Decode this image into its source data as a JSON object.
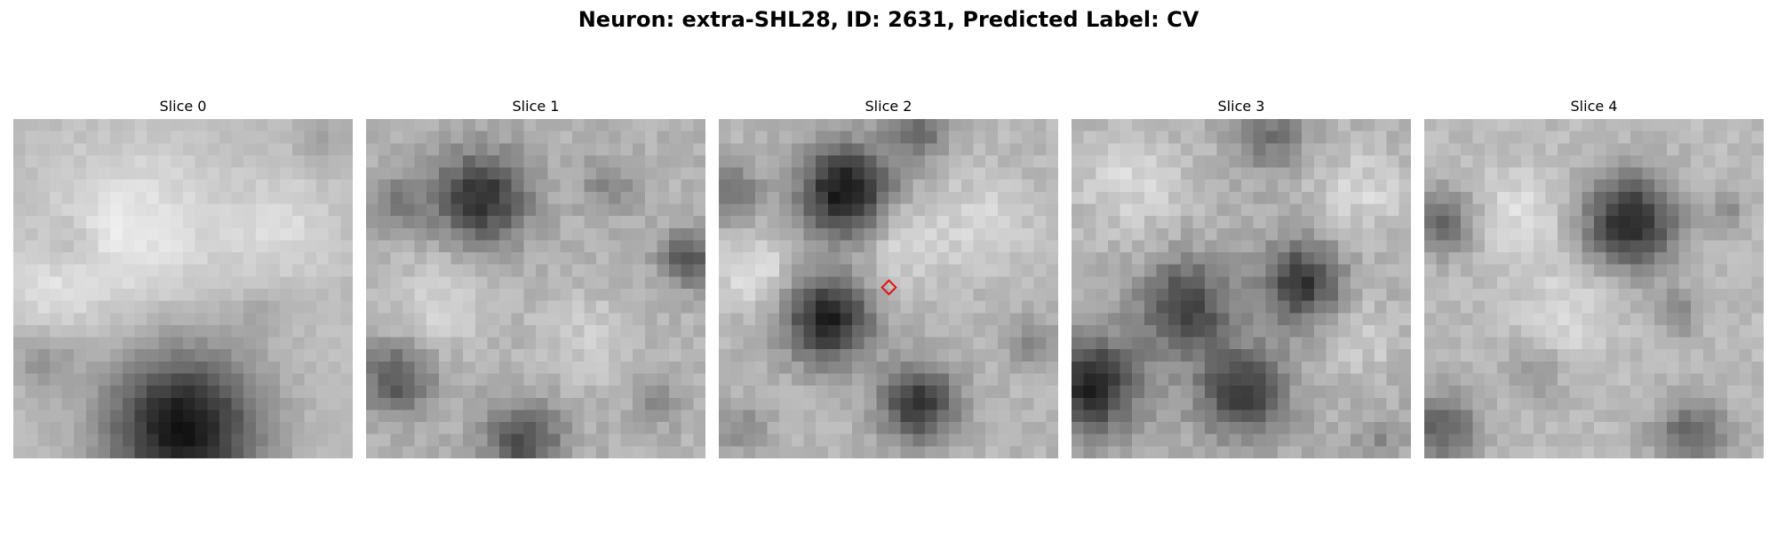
{
  "figure": {
    "title": "Neuron: extra-SHL28, ID: 2631, Predicted Label: CV"
  },
  "panels": [
    {
      "title": "Slice 0",
      "grid": 28,
      "base": 188,
      "blobs": [
        {
          "cx": 14.0,
          "cy": 25.5,
          "r": 6.2,
          "depth": 170
        },
        {
          "cx": 2.5,
          "cy": 20.0,
          "r": 2.5,
          "depth": 40
        },
        {
          "cx": 4.5,
          "cy": 10.5,
          "r": 2.2,
          "depth": 25
        },
        {
          "cx": 25.5,
          "cy": 2.0,
          "r": 2.2,
          "depth": 25
        },
        {
          "cx": 20.5,
          "cy": 16.0,
          "r": 1.8,
          "depth": 20
        }
      ],
      "brights": [
        {
          "cx": 10.0,
          "cy": 9.0,
          "r": 6.5,
          "amp": 45
        },
        {
          "cx": 22.0,
          "cy": 9.0,
          "r": 4.5,
          "amp": 30
        },
        {
          "cx": 3.0,
          "cy": 14.0,
          "r": 3.5,
          "amp": 30
        }
      ],
      "noise": 16,
      "seed": 11
    },
    {
      "title": "Slice 1",
      "grid": 28,
      "base": 178,
      "blobs": [
        {
          "cx": 9.5,
          "cy": 6.5,
          "r": 3.8,
          "depth": 130
        },
        {
          "cx": 2.5,
          "cy": 7.0,
          "r": 2.6,
          "depth": 50
        },
        {
          "cx": 26.5,
          "cy": 11.5,
          "r": 2.2,
          "depth": 95
        },
        {
          "cx": 2.5,
          "cy": 21.5,
          "r": 3.0,
          "depth": 90
        },
        {
          "cx": 13.0,
          "cy": 26.5,
          "r": 3.2,
          "depth": 100
        },
        {
          "cx": 20.0,
          "cy": 5.5,
          "r": 2.4,
          "depth": 40
        },
        {
          "cx": 24.0,
          "cy": 23.5,
          "r": 2.0,
          "depth": 35
        }
      ],
      "brights": [
        {
          "cx": 6.0,
          "cy": 15.0,
          "r": 4.0,
          "amp": 35
        },
        {
          "cx": 18.0,
          "cy": 18.0,
          "r": 4.0,
          "amp": 25
        }
      ],
      "noise": 26,
      "seed": 23
    },
    {
      "title": "Slice 2",
      "grid": 28,
      "base": 182,
      "blobs": [
        {
          "cx": 10.5,
          "cy": 6.0,
          "r": 3.8,
          "depth": 165
        },
        {
          "cx": 9.0,
          "cy": 16.5,
          "r": 3.6,
          "depth": 150
        },
        {
          "cx": 16.5,
          "cy": 23.5,
          "r": 3.2,
          "depth": 130
        },
        {
          "cx": 16.5,
          "cy": 1.0,
          "r": 2.5,
          "depth": 75
        },
        {
          "cx": 0.8,
          "cy": 6.0,
          "r": 2.5,
          "depth": 70
        },
        {
          "cx": 26.0,
          "cy": 18.5,
          "r": 2.0,
          "depth": 45
        },
        {
          "cx": 2.0,
          "cy": 25.5,
          "r": 2.2,
          "depth": 45
        }
      ],
      "brights": [
        {
          "cx": 3.0,
          "cy": 12.5,
          "r": 3.0,
          "amp": 45
        },
        {
          "cx": 15.0,
          "cy": 10.0,
          "r": 3.5,
          "amp": 40
        },
        {
          "cx": 22.0,
          "cy": 8.5,
          "r": 4.0,
          "amp": 30
        }
      ],
      "noise": 24,
      "seed": 37
    },
    {
      "title": "Slice 3",
      "grid": 28,
      "base": 176,
      "blobs": [
        {
          "cx": 9.5,
          "cy": 15.5,
          "r": 3.8,
          "depth": 110
        },
        {
          "cx": 19.0,
          "cy": 13.5,
          "r": 3.2,
          "depth": 125
        },
        {
          "cx": 14.0,
          "cy": 22.5,
          "r": 3.6,
          "depth": 120
        },
        {
          "cx": 1.5,
          "cy": 22.0,
          "r": 4.0,
          "depth": 140
        },
        {
          "cx": 16.5,
          "cy": 1.5,
          "r": 2.8,
          "depth": 60
        },
        {
          "cx": 25.5,
          "cy": 26.5,
          "r": 2.0,
          "depth": 35
        }
      ],
      "brights": [
        {
          "cx": 5.0,
          "cy": 5.0,
          "r": 4.5,
          "amp": 40
        },
        {
          "cx": 24.0,
          "cy": 6.0,
          "r": 4.0,
          "amp": 35
        },
        {
          "cx": 24.0,
          "cy": 18.0,
          "r": 3.0,
          "amp": 30
        }
      ],
      "noise": 30,
      "seed": 53
    },
    {
      "title": "Slice 4",
      "grid": 28,
      "base": 186,
      "blobs": [
        {
          "cx": 17.0,
          "cy": 8.5,
          "r": 3.8,
          "depth": 150
        },
        {
          "cx": 1.5,
          "cy": 8.5,
          "r": 2.6,
          "depth": 90
        },
        {
          "cx": 1.5,
          "cy": 25.5,
          "r": 3.0,
          "depth": 90
        },
        {
          "cx": 22.0,
          "cy": 26.0,
          "r": 3.0,
          "depth": 85
        },
        {
          "cx": 21.0,
          "cy": 16.0,
          "r": 2.0,
          "depth": 50
        },
        {
          "cx": 9.0,
          "cy": 21.0,
          "r": 2.4,
          "depth": 40
        },
        {
          "cx": 25.0,
          "cy": 7.5,
          "r": 1.6,
          "depth": 40
        }
      ],
      "brights": [
        {
          "cx": 8.0,
          "cy": 8.0,
          "r": 4.0,
          "amp": 35
        },
        {
          "cx": 12.0,
          "cy": 16.0,
          "r": 4.0,
          "amp": 30
        }
      ],
      "noise": 24,
      "seed": 71
    }
  ],
  "marker": {
    "panel": 2,
    "gx": 14.0,
    "gy": 13.9,
    "color": "#e01010"
  }
}
